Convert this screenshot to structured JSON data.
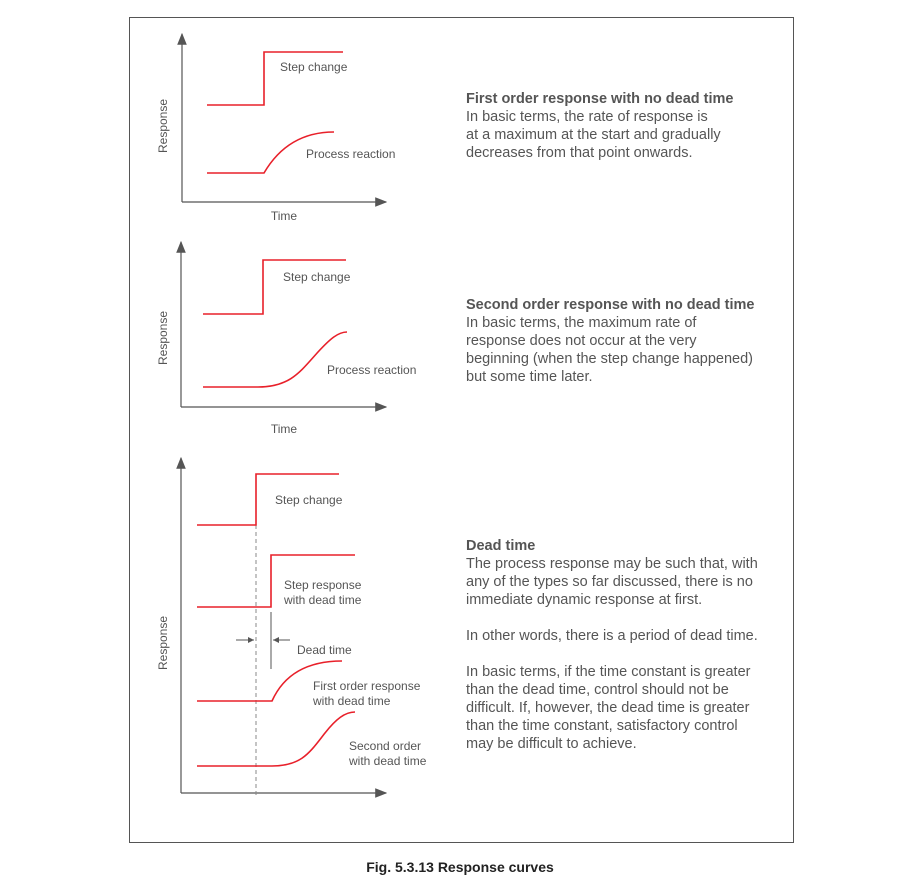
{
  "colors": {
    "curve": "#e8202a",
    "axis": "#555555",
    "text": "#555555"
  },
  "diagram1": {
    "ylabel": "Response",
    "xlabel": "Time",
    "step_label": "Step change",
    "reaction_label": "Process reaction"
  },
  "diagram2": {
    "ylabel": "Response",
    "xlabel": "Time",
    "step_label": "Step change",
    "reaction_label": "Process reaction"
  },
  "diagram3": {
    "ylabel": "Response",
    "step_label": "Step change",
    "step_dead_1": "Step response",
    "step_dead_2": "with dead time",
    "dead_time_label": "Dead time",
    "first_1": "First order response",
    "first_2": "with dead time",
    "second_1": "Second order",
    "second_2": "with dead time"
  },
  "text1": {
    "title": "First order response with no dead time",
    "lines": [
      "In basic terms, the rate of response is",
      "at a maximum at the start and gradually",
      "decreases from that point onwards."
    ]
  },
  "text2": {
    "title": "Second order response with no dead time",
    "lines": [
      "In basic terms, the maximum rate of",
      "response does not occur at the very",
      "beginning (when the step change happened)",
      "but some time later."
    ]
  },
  "text3": {
    "title": "Dead time",
    "p1": [
      "The process response may be such that, with",
      "any of the types so far discussed, there is no",
      "immediate dynamic response at first."
    ],
    "p2": [
      "In other words, there is a period of dead time."
    ],
    "p3": [
      "In basic terms, if the time constant is greater",
      "than the dead time, control should not be",
      "difficult. If, however, the dead time is greater",
      "than the time constant, satisfactory control",
      "may be difficult to achieve."
    ]
  },
  "caption": "Fig. 5.3.13 Response curves"
}
